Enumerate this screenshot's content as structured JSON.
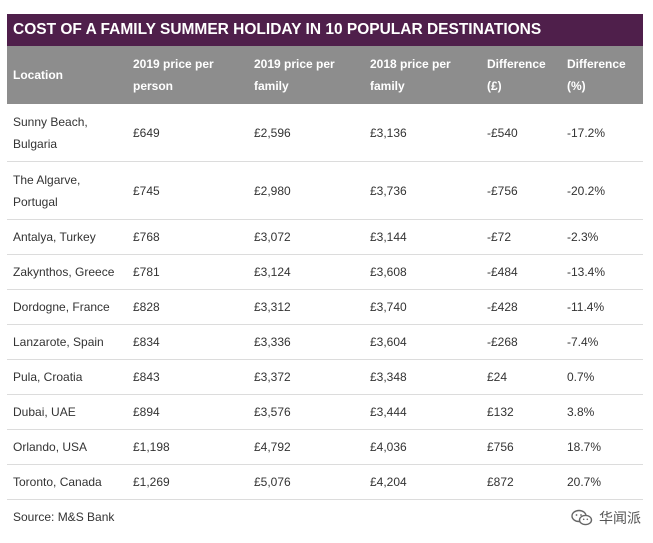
{
  "title": "COST OF A FAMILY SUMMER HOLIDAY IN 10 POPULAR DESTINATIONS",
  "columns": [
    "Location",
    "2019 price per person",
    "2019 price per family",
    "2018 price per family",
    "Difference (£)",
    "Difference (%)"
  ],
  "rows": [
    [
      "Sunny Beach, Bulgaria",
      "£649",
      "£2,596",
      "£3,136",
      "-£540",
      "-17.2%"
    ],
    [
      "The Algarve, Portugal",
      "£745",
      "£2,980",
      "£3,736",
      "-£756",
      "-20.2%"
    ],
    [
      "Antalya, Turkey",
      "£768",
      "£3,072",
      "£3,144",
      "-£72",
      "-2.3%"
    ],
    [
      "Zakynthos, Greece",
      "£781",
      "£3,124",
      "£3,608",
      "-£484",
      "-13.4%"
    ],
    [
      "Dordogne, France",
      "£828",
      "£3,312",
      "£3,740",
      "-£428",
      "-11.4%"
    ],
    [
      "Lanzarote, Spain",
      "£834",
      "£3,336",
      "£3,604",
      "-£268",
      "-7.4%"
    ],
    [
      "Pula, Croatia",
      "£843",
      "£3,372",
      "£3,348",
      "£24",
      "0.7%"
    ],
    [
      "Dubai, UAE",
      "£894",
      "£3,576",
      "£3,444",
      "£132",
      "3.8%"
    ],
    [
      "Orlando, USA",
      "£1,198",
      "£4,792",
      "£4,036",
      "£756",
      "18.7%"
    ],
    [
      "Toronto, Canada",
      "£1,269",
      "£5,076",
      "£4,204",
      "£872",
      "20.7%"
    ]
  ],
  "source": "Source: M&S Bank",
  "watermark": {
    "text": "华闻派",
    "icon": "wechat-icon"
  },
  "colors": {
    "title_bg": "#4f1f4b",
    "header_bg": "#8d8d8d"
  }
}
